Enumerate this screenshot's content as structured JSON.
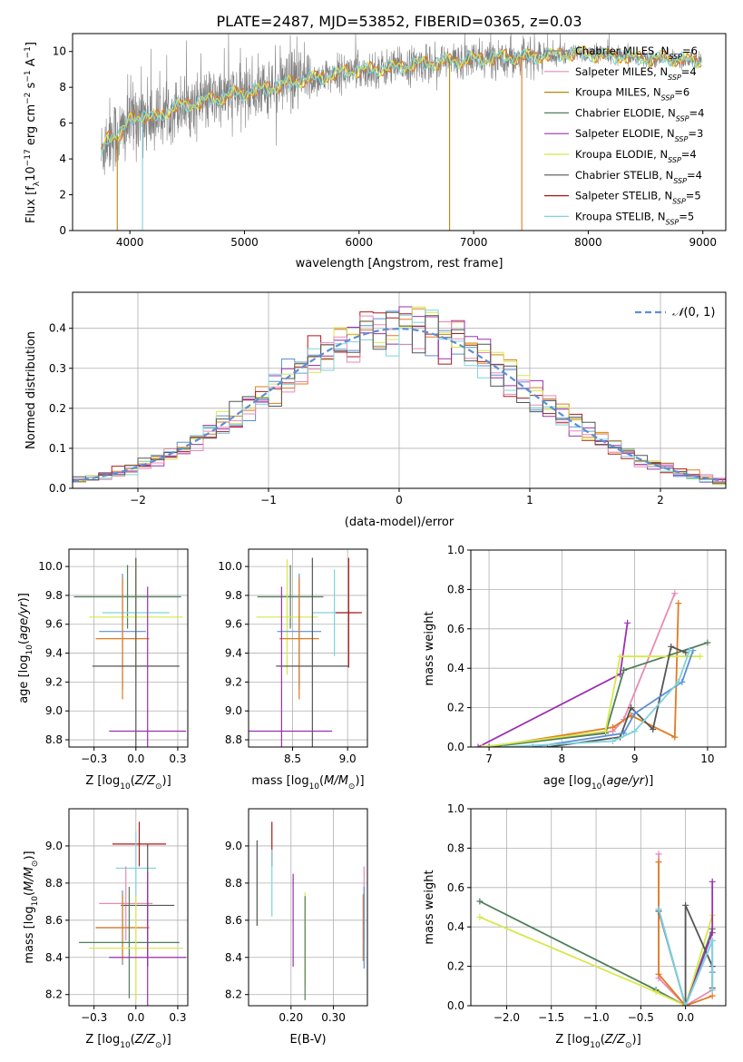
{
  "figure_title": "PLATE=2487, MJD=53852, FIBERID=0365, z=0.03",
  "colors": {
    "Chabrier MILES": "#8c8c8c",
    "Salpeter MILES": "#e88ab5",
    "Kroupa MILES": "#b8860b",
    "Chabrier ELODIE": "#4f7f5a",
    "Salpeter ELODIE": "#9b30b0",
    "Kroupa ELODIE": "#d7e84a",
    "Chabrier STELIB": "#555555",
    "Salpeter STELIB": "#b01818",
    "Kroupa STELIB": "#7fd3dd",
    "orange": "#e07b20",
    "blue": "#5b8fd6",
    "gaussian": "#5b8fd6"
  },
  "chart_data": [
    {
      "id": "spectrum",
      "type": "line",
      "title": "PLATE=2487, MJD=53852, FIBERID=0365, z=0.03",
      "xlabel": "wavelength [Angstrom, rest frame]",
      "ylabel": "Flux [f_λ 10^-17 erg cm^-2 s^-1 A^-1]",
      "xlim": [
        3500,
        9200
      ],
      "ylim": [
        0,
        11
      ],
      "xticks": [
        4000,
        5000,
        6000,
        7000,
        8000,
        9000
      ],
      "yticks": [
        0,
        2,
        4,
        6,
        8,
        10
      ],
      "grid": false,
      "legend_position": "right",
      "legend": [
        "Chabrier MILES, N_SSP=6",
        "Salpeter MILES, N_SSP=4",
        "Kroupa MILES, N_SSP=6",
        "Chabrier ELODIE, N_SSP=4",
        "Salpeter ELODIE, N_SSP=3",
        "Kroupa ELODIE, N_SSP=4",
        "Chabrier STELIB, N_SSP=4",
        "Salpeter STELIB, N_SSP=5",
        "Kroupa STELIB, N_SSP=5"
      ],
      "model_continuum": {
        "x": [
          3750,
          3800,
          3850,
          3900,
          3950,
          4000,
          4100,
          4200,
          4300,
          4400,
          4500,
          4700,
          4900,
          5100,
          5300,
          5500,
          5700,
          5900,
          6100,
          6300,
          6500,
          6700,
          6900,
          7100,
          7300,
          7500,
          7700,
          7900,
          8100,
          8300,
          8500,
          8700,
          8900,
          9000
        ],
        "y": [
          4.2,
          5.2,
          5.4,
          5.3,
          5.6,
          6.2,
          6.5,
          6.2,
          6.6,
          6.9,
          7.0,
          7.3,
          7.6,
          7.8,
          8.1,
          8.4,
          8.6,
          8.9,
          9.0,
          9.1,
          9.3,
          9.4,
          9.5,
          9.6,
          9.7,
          9.7,
          9.8,
          9.9,
          9.8,
          9.7,
          9.6,
          9.6,
          9.5,
          9.4
        ]
      },
      "dropouts": [
        {
          "x": 3890,
          "series": "Kroupa MILES"
        },
        {
          "x": 4110,
          "series": "Kroupa STELIB"
        },
        {
          "x": 6790,
          "series": "Kroupa MILES"
        },
        {
          "x": 7420,
          "series": "orange"
        }
      ]
    },
    {
      "id": "residual_hist",
      "type": "line",
      "xlabel": "(data-model)/error",
      "ylabel": "Normed distribution",
      "xlim": [
        -2.5,
        2.5
      ],
      "ylim": [
        0,
        0.49
      ],
      "xticks": [
        -2,
        -1,
        0,
        1,
        2
      ],
      "yticks": [
        0.0,
        0.1,
        0.2,
        0.3,
        0.4
      ],
      "grid": true,
      "legend_position": "top-right",
      "legend": [
        "N(0,1)"
      ],
      "bin_width": 0.1
    },
    {
      "id": "age_vs_Z",
      "type": "scatter",
      "xlabel": "Z [log10(Z/Z_sun)]",
      "ylabel": "age [log10(age/yr)]",
      "xlim": [
        -0.4,
        0.31
      ],
      "ylim": [
        8.75,
        10.12
      ],
      "xticks": [
        -0.25,
        0.0,
        0.25
      ],
      "yticks": [
        8.8,
        9.0,
        9.2,
        9.4,
        9.6,
        9.8,
        10.0
      ],
      "grid": true,
      "points": [
        {
          "series": "Chabrier ELODIE",
          "x": -0.05,
          "xerr": 0.32,
          "y": 9.79,
          "yerr": 0.22
        },
        {
          "series": "Kroupa STELIB",
          "x": 0.0,
          "xerr": 0.2,
          "y": 9.68,
          "yerr": 0.3
        },
        {
          "series": "Kroupa ELODIE",
          "x": 0.0,
          "xerr": 0.28,
          "y": 9.65,
          "yerr": 0.4
        },
        {
          "series": "blue",
          "x": -0.08,
          "xerr": 0.14,
          "y": 9.55,
          "yerr": 0.4
        },
        {
          "series": "orange",
          "x": -0.08,
          "xerr": 0.16,
          "y": 9.5,
          "yerr": 0.42
        },
        {
          "series": "Chabrier STELIB",
          "x": 0.0,
          "xerr": 0.26,
          "y": 9.31,
          "yerr": 0.75
        },
        {
          "series": "Salpeter ELODIE",
          "x": 0.07,
          "xerr": 0.23,
          "y": 8.86,
          "yerr": 1.0
        }
      ]
    },
    {
      "id": "age_vs_mass",
      "type": "scatter",
      "xlabel": "mass [log10(M/M_sun)]",
      "ylabel": "",
      "xlim": [
        8.1,
        9.18
      ],
      "ylim": [
        8.75,
        10.12
      ],
      "xticks": [
        8.5,
        9.0
      ],
      "yticks": [
        8.8,
        9.0,
        9.2,
        9.4,
        9.6,
        9.8,
        10.0
      ],
      "grid": true,
      "points": [
        {
          "series": "Chabrier ELODIE",
          "x": 8.48,
          "xerr": 0.3,
          "y": 9.79,
          "yerr": 0.22
        },
        {
          "series": "Kroupa STELIB",
          "x": 8.88,
          "xerr": 0.2,
          "y": 9.68,
          "yerr": 0.3
        },
        {
          "series": "Kroupa ELODIE",
          "x": 8.45,
          "xerr": 0.28,
          "y": 9.65,
          "yerr": 0.4
        },
        {
          "series": "blue",
          "x": 8.56,
          "xerr": 0.2,
          "y": 9.55,
          "yerr": 0.4
        },
        {
          "series": "orange",
          "x": 8.56,
          "xerr": 0.18,
          "y": 9.5,
          "yerr": 0.42
        },
        {
          "series": "Salpeter STELIB",
          "x": 9.01,
          "xerr": 0.12,
          "y": 9.68,
          "yerr": 0.38
        },
        {
          "series": "Chabrier STELIB",
          "x": 8.68,
          "xerr": 0.33,
          "y": 9.31,
          "yerr": 0.75
        },
        {
          "series": "Salpeter ELODIE",
          "x": 8.4,
          "xerr": 0.46,
          "y": 8.86,
          "yerr": 1.0
        }
      ]
    },
    {
      "id": "weight_vs_age",
      "type": "line",
      "xlabel": "age [log10(age/yr)]",
      "ylabel": "mass weight",
      "xlim": [
        6.75,
        10.25
      ],
      "ylim": [
        0,
        1.0
      ],
      "xticks": [
        7,
        8,
        9,
        10
      ],
      "yticks": [
        0.0,
        0.2,
        0.4,
        0.6,
        0.8,
        1.0
      ],
      "grid": true,
      "series": [
        {
          "name": "Salpeter ELODIE",
          "x": [
            6.85,
            8.8,
            8.9
          ],
          "y": [
            0.0,
            0.37,
            0.63
          ]
        },
        {
          "name": "Salpeter MILES",
          "x": [
            6.9,
            8.7,
            8.85,
            9.55
          ],
          "y": [
            0.0,
            0.08,
            0.14,
            0.78
          ]
        },
        {
          "name": "orange",
          "x": [
            7.0,
            8.7,
            8.95,
            9.55,
            9.6
          ],
          "y": [
            0.0,
            0.1,
            0.16,
            0.05,
            0.73
          ]
        },
        {
          "name": "Chabrier ELODIE",
          "x": [
            7.0,
            8.6,
            8.85,
            10.0
          ],
          "y": [
            0.0,
            0.07,
            0.39,
            0.53
          ]
        },
        {
          "name": "Kroupa ELODIE",
          "x": [
            6.9,
            8.6,
            8.8,
            9.9
          ],
          "y": [
            0.0,
            0.08,
            0.46,
            0.46
          ]
        },
        {
          "name": "Chabrier STELIB",
          "x": [
            7.8,
            8.8,
            8.95,
            9.25,
            9.5,
            9.7
          ],
          "y": [
            0.0,
            0.05,
            0.2,
            0.09,
            0.51,
            0.48
          ]
        },
        {
          "name": "blue",
          "x": [
            7.6,
            8.85,
            9.0,
            9.65,
            9.8
          ],
          "y": [
            0.0,
            0.07,
            0.17,
            0.33,
            0.49
          ]
        },
        {
          "name": "Kroupa STELIB",
          "x": [
            7.2,
            8.7,
            9.0,
            9.6,
            9.75
          ],
          "y": [
            0.0,
            0.03,
            0.08,
            0.33,
            0.49
          ]
        }
      ]
    },
    {
      "id": "mass_vs_Z",
      "type": "scatter",
      "xlabel": "Z [log10(Z/Z_sun)]",
      "ylabel": "mass [log10(M/M_sun)]",
      "xlim": [
        -0.4,
        0.31
      ],
      "ylim": [
        8.14,
        9.2
      ],
      "xticks": [
        -0.25,
        0.0,
        0.25
      ],
      "yticks": [
        8.2,
        8.4,
        8.6,
        8.8,
        9.0
      ],
      "grid": true,
      "points": [
        {
          "series": "Salpeter STELIB",
          "x": 0.02,
          "xerr": 0.16,
          "y": 9.01,
          "yerr": 0.12
        },
        {
          "series": "Kroupa STELIB",
          "x": 0.0,
          "xerr": 0.12,
          "y": 8.88,
          "yerr": 0.2
        },
        {
          "series": "Salpeter MILES",
          "x": -0.06,
          "xerr": 0.16,
          "y": 8.69,
          "yerr": 0.2
        },
        {
          "series": "Chabrier STELIB",
          "x": 0.07,
          "xerr": 0.16,
          "y": 8.68,
          "yerr": 0.33
        },
        {
          "series": "blue",
          "x": -0.08,
          "xerr": 0.16,
          "y": 8.56,
          "yerr": 0.2
        },
        {
          "series": "orange",
          "x": -0.08,
          "xerr": 0.16,
          "y": 8.56,
          "yerr": 0.18
        },
        {
          "series": "Chabrier ELODIE",
          "x": -0.04,
          "xerr": 0.3,
          "y": 8.48,
          "yerr": 0.3
        },
        {
          "series": "Kroupa ELODIE",
          "x": 0.0,
          "xerr": 0.28,
          "y": 8.45,
          "yerr": 0.28
        },
        {
          "series": "Salpeter ELODIE",
          "x": 0.07,
          "xerr": 0.23,
          "y": 8.4,
          "yerr": 0.46
        }
      ]
    },
    {
      "id": "mass_vs_ebv",
      "type": "scatter",
      "xlabel": "E(B-V)",
      "ylabel": "",
      "xlim": [
        0.1,
        0.38
      ],
      "ylim": [
        8.14,
        9.2
      ],
      "xticks": [
        0.2,
        0.3
      ],
      "yticks": [
        8.2,
        8.4,
        8.6,
        8.8,
        9.0
      ],
      "grid": true,
      "points": [
        {
          "series": "Chabrier STELIB",
          "x": 0.12,
          "y": 8.8,
          "yerr": 0.23
        },
        {
          "series": "Salpeter STELIB",
          "x": 0.155,
          "y": 9.01,
          "yerr": 0.12
        },
        {
          "series": "Kroupa STELIB",
          "x": 0.155,
          "y": 8.8,
          "yerr": 0.18
        },
        {
          "series": "Salpeter ELODIE",
          "x": 0.205,
          "y": 8.6,
          "yerr": 0.25
        },
        {
          "series": "Kroupa ELODIE",
          "x": 0.233,
          "y": 8.5,
          "yerr": 0.25
        },
        {
          "series": "Chabrier ELODIE",
          "x": 0.233,
          "y": 8.45,
          "yerr": 0.28
        },
        {
          "series": "orange",
          "x": 0.37,
          "y": 8.56,
          "yerr": 0.18
        },
        {
          "series": "Salpeter MILES",
          "x": 0.372,
          "y": 8.69,
          "yerr": 0.2
        },
        {
          "series": "blue",
          "x": 0.372,
          "y": 8.56,
          "yerr": 0.22
        }
      ]
    },
    {
      "id": "weight_vs_Z",
      "type": "line",
      "xlabel": "Z [log10(Z/Z_sun)]",
      "ylabel": "mass weight",
      "xlim": [
        -2.4,
        0.45
      ],
      "ylim": [
        0,
        1.0
      ],
      "xticks": [
        -2.0,
        -1.5,
        -1.0,
        -0.5,
        0.0
      ],
      "yticks": [
        0.0,
        0.2,
        0.4,
        0.6,
        0.8,
        1.0
      ],
      "grid": true,
      "series": [
        {
          "name": "Chabrier ELODIE",
          "x": [
            -2.3,
            -0.33,
            0.0,
            0.3
          ],
          "y": [
            0.53,
            0.08,
            0.0,
            0.39
          ]
        },
        {
          "name": "Kroupa ELODIE",
          "x": [
            -2.3,
            -0.33,
            0.0,
            0.3
          ],
          "y": [
            0.45,
            0.07,
            0.0,
            0.46
          ]
        },
        {
          "name": "Salpeter MILES",
          "x": [
            -0.3,
            -0.3,
            0.0,
            0.3
          ],
          "y": [
            0.77,
            0.14,
            0.0,
            0.08
          ]
        },
        {
          "name": "orange",
          "x": [
            -0.3,
            -0.3,
            0.0,
            0.3
          ],
          "y": [
            0.73,
            0.16,
            0.0,
            0.05
          ]
        },
        {
          "name": "Salpeter ELODIE",
          "x": [
            0.0,
            0.3,
            0.3
          ],
          "y": [
            0.0,
            0.37,
            0.63
          ]
        },
        {
          "name": "Chabrier STELIB",
          "x": [
            -0.3,
            0.0,
            0.0,
            0.3,
            0.3
          ],
          "y": [
            0.48,
            0.0,
            0.51,
            0.2,
            0.09
          ]
        },
        {
          "name": "blue",
          "x": [
            -0.3,
            0.0,
            0.3,
            0.3
          ],
          "y": [
            0.49,
            0.0,
            0.33,
            0.17
          ]
        },
        {
          "name": "Kroupa STELIB",
          "x": [
            -0.3,
            0.0,
            0.3,
            0.3
          ],
          "y": [
            0.49,
            0.0,
            0.33,
            0.08
          ]
        }
      ]
    }
  ]
}
